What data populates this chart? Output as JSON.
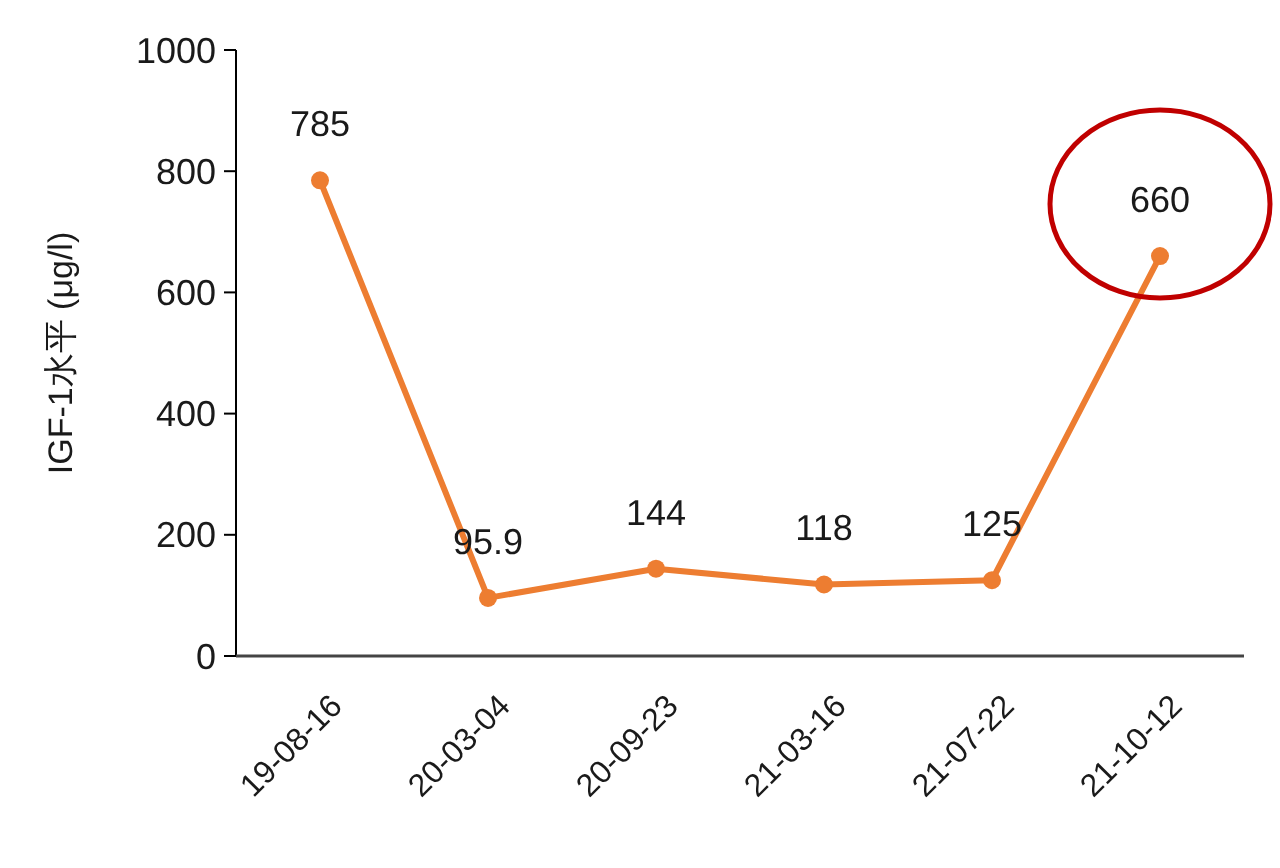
{
  "chart_data": {
    "type": "line",
    "ylabel": "IGF-1水平 (μg/l)",
    "categories": [
      "19-08-16",
      "20-03-04",
      "20-09-23",
      "21-03-16",
      "21-07-22",
      "21-10-12"
    ],
    "series": [
      {
        "color": "#ed7d31",
        "values": [
          785,
          95.9,
          144,
          118,
          125,
          660
        ]
      }
    ],
    "ylim": [
      0,
      1000
    ],
    "yticks": [
      0,
      200,
      400,
      600,
      800,
      1000
    ],
    "marker": "circle",
    "data_labels": true
  }
}
